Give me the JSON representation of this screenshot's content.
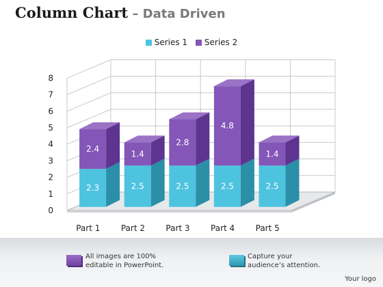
{
  "title": {
    "main": "Column Chart",
    "separator": " – ",
    "sub": "Data Driven"
  },
  "colors": {
    "series1": "#4ec3e0",
    "series1_dark": "#2c8fa8",
    "series2": "#8456b8",
    "series2_dark": "#5d3590",
    "grid": "#c8c8c8"
  },
  "chart_data": {
    "type": "bar",
    "stacked": true,
    "three_d": true,
    "categories": [
      "Part 1",
      "Part 2",
      "Part 3",
      "Part 4",
      "Part 5"
    ],
    "series": [
      {
        "name": "Series 1",
        "values": [
          2.3,
          2.5,
          2.5,
          2.5,
          2.5
        ]
      },
      {
        "name": "Series 2",
        "values": [
          2.4,
          1.4,
          2.8,
          4.8,
          1.4
        ]
      }
    ],
    "ylim": [
      0,
      8
    ],
    "yticks": [
      0,
      1,
      2,
      3,
      4,
      5,
      6,
      7,
      8
    ],
    "grid": true,
    "legend": "top-center"
  },
  "footer": {
    "note1": "All images are 100%\neditable in PowerPoint.",
    "note2": "Capture your\naudience’s attention.",
    "logo": "Your logo"
  }
}
